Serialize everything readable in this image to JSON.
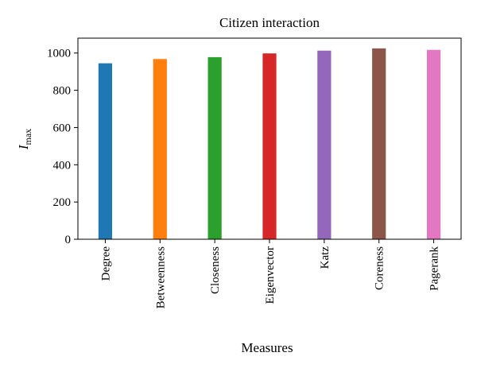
{
  "chart_data": {
    "type": "bar",
    "title": "Citizen interaction",
    "xlabel": "Measures",
    "ylabel": "I",
    "ylabel_subscript": "max",
    "categories": [
      "Degree",
      "Betweenness",
      "Closeness",
      "Eigenvector",
      "Katz",
      "Coreness",
      "Pagerank"
    ],
    "values": [
      945,
      968,
      978,
      998,
      1013,
      1025,
      1017
    ],
    "colors": [
      "#1f77b4",
      "#ff7f0e",
      "#2ca02c",
      "#d62728",
      "#9467bd",
      "#8c564b",
      "#e377c2"
    ],
    "ylim": [
      0,
      1080
    ],
    "yticks": [
      0,
      200,
      400,
      600,
      800,
      1000
    ],
    "grid": false,
    "legend": "none"
  }
}
